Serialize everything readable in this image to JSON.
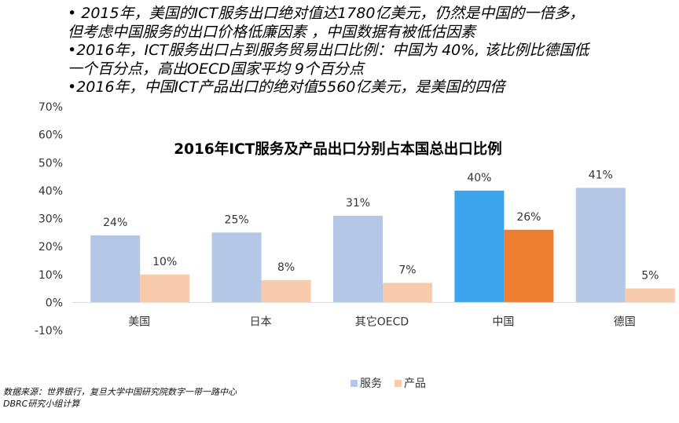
{
  "notes": [
    "• 2015年，美国的ICT服务出口绝对值达1780亿美元，仍然是中国的一倍多，",
    "   但考虑中国服务的出口价格低廉因素 ，中国数据有被低估因素",
    "•2016年，ICT服务出口占到服务贸易出口比例：中国为 40%, 该比例比德国低",
    "   一个百分点，高出OECD国家平均 9个百分点",
    "•2016年，中国ICT产品出口的绝对值5560亿美元，是美国的四倍"
  ],
  "source": [
    "数据来源：世界银行，复旦大学中国研究院数字一带一路中心",
    "DBRC研究小组计算"
  ],
  "chart_data": {
    "type": "bar",
    "title": "2016年ICT服务及产品出口分别占本国总出口比例",
    "categories": [
      "美国",
      "日本",
      "其它OECD",
      "中国",
      "德国"
    ],
    "series": [
      {
        "name": "服务",
        "values": [
          24,
          25,
          31,
          40,
          41
        ],
        "labels": [
          "24%",
          "25%",
          "31%",
          "40%",
          "41%"
        ]
      },
      {
        "name": "产品",
        "values": [
          10,
          8,
          7,
          26,
          5
        ],
        "labels": [
          "10%",
          "8%",
          "7%",
          "26%",
          "5%"
        ]
      }
    ],
    "ylim": [
      -10,
      70
    ],
    "yticks": [
      "-10%",
      "0%",
      "10%",
      "20%",
      "30%",
      "40%",
      "50%",
      "60%",
      "70%"
    ],
    "ytick_values": [
      -10,
      0,
      10,
      20,
      30,
      40,
      50,
      60,
      70
    ],
    "colors": {
      "services": "#b4c7e7",
      "products": "#f8cbad",
      "china_services": "#3ba6ee",
      "china_products": "#ed7d31",
      "axis": "#d9d9d9"
    },
    "highlight_category": "中国",
    "legend_position": "bottom"
  }
}
